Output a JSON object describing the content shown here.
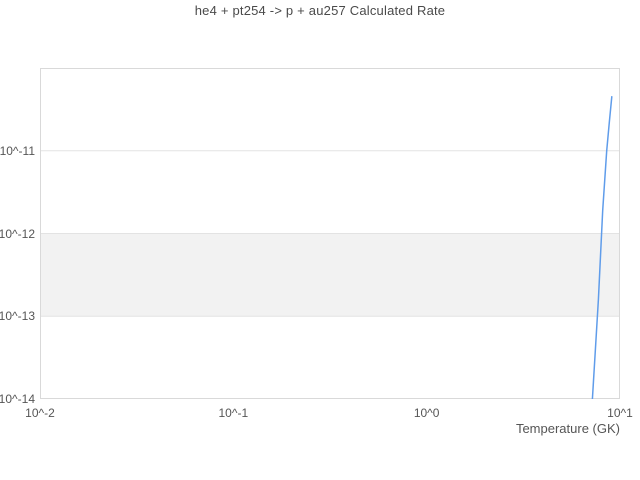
{
  "page": {
    "background": "#ffffff"
  },
  "chart_data": {
    "type": "line",
    "title": "he4 + pt254 -> p + au257 Calculated Rate",
    "xlabel": "Temperature (GK)",
    "ylabel": "",
    "x_scale": "log",
    "y_scale": "log",
    "xlim": [
      0.01,
      10
    ],
    "ylim": [
      1e-14,
      1e-10
    ],
    "grid": "horizontal",
    "legend": "none",
    "x_ticks": [
      {
        "value": 0.01,
        "label": "10^-2"
      },
      {
        "value": 0.1,
        "label": "10^-1"
      },
      {
        "value": 1,
        "label": "10^0"
      },
      {
        "value": 10,
        "label": "10^1"
      }
    ],
    "y_ticks": [
      {
        "value": 1e-11,
        "label": "10^-11"
      },
      {
        "value": 1e-12,
        "label": "10^-12"
      },
      {
        "value": 1e-13,
        "label": "10^-13"
      },
      {
        "value": 1e-14,
        "label": "10^-14"
      }
    ],
    "shaded_band": {
      "y_from": 1e-13,
      "y_to": 1e-12,
      "color": "#f2f2f2"
    },
    "colors": {
      "line": "#5f9cea",
      "grid": "#e3e3e3",
      "border": "#d9d9d9",
      "text": "#555555",
      "title": "#4a4a4a"
    },
    "series": [
      {
        "name": "calculated_rate",
        "color": "#5f9cea",
        "points": [
          [
            7.2,
            1e-14
          ],
          [
            7.45,
            3.8e-14
          ],
          [
            7.73,
            1.6e-13
          ],
          [
            8.14,
            1.9e-12
          ],
          [
            8.54,
            1e-11
          ],
          [
            8.8,
            2.2e-11
          ],
          [
            9.07,
            4.5e-11
          ]
        ]
      }
    ]
  }
}
